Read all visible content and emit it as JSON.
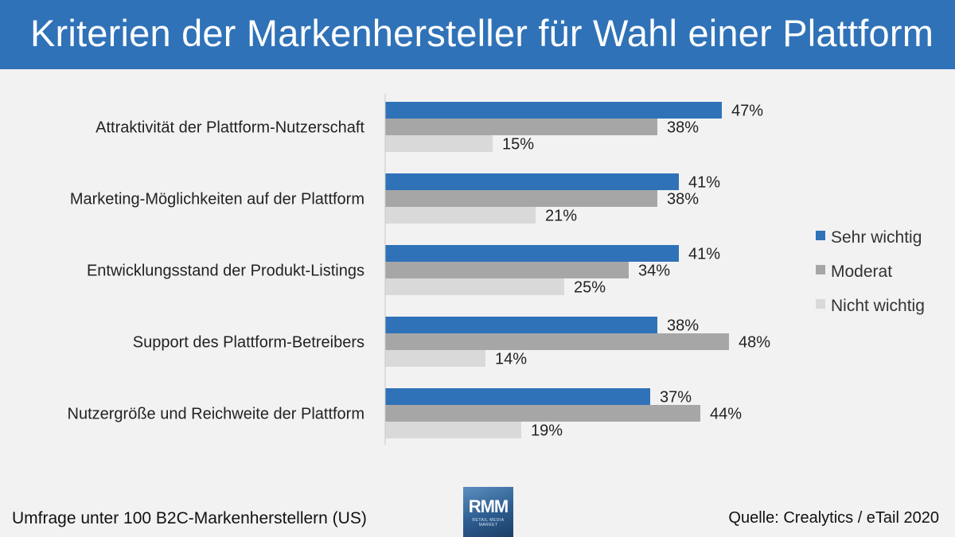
{
  "header": {
    "title": "Kriterien der Markenhersteller für Wahl einer Plattform"
  },
  "footer": {
    "left": "Umfrage unter 100 B2C-Markenherstellern (US)",
    "right": "Quelle: Crealytics / eTail 2020"
  },
  "logo": {
    "text": "RMM",
    "subtext": "RETAIL MEDIA MARKET"
  },
  "chart_data": {
    "type": "bar",
    "orientation": "horizontal",
    "categories": [
      "Attraktivität der Plattform-Nutzerschaft",
      "Marketing-Möglichkeiten auf der Plattform",
      "Entwicklungsstand der Produkt-Listings",
      "Support des Plattform-Betreibers",
      "Nutzergröße und Reichweite der Plattform"
    ],
    "series": [
      {
        "name": "Sehr wichtig",
        "values": [
          47,
          41,
          41,
          38,
          37
        ],
        "color": "#2f72b8"
      },
      {
        "name": "Moderat",
        "values": [
          38,
          38,
          34,
          48,
          44
        ],
        "color": "#a6a6a6"
      },
      {
        "name": "Nicht wichtig",
        "values": [
          15,
          21,
          25,
          14,
          19
        ],
        "color": "#d9d9d9"
      }
    ],
    "value_suffix": "%",
    "xlim": [
      0,
      55
    ],
    "grid": false,
    "legend_position": "right"
  }
}
